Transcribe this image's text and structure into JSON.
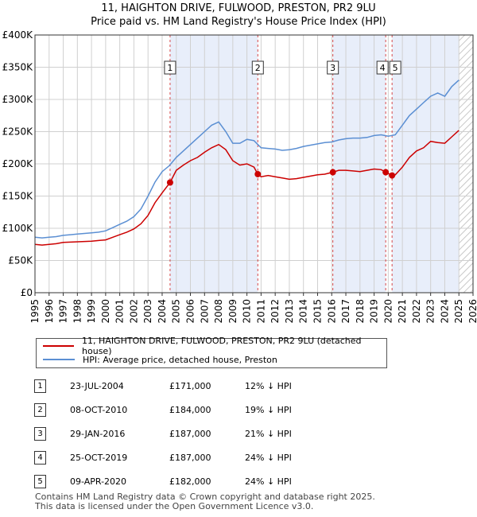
{
  "title_line1": "11, HAIGHTON DRIVE, FULWOOD, PRESTON, PR2 9LU",
  "title_line2": "Price paid vs. HM Land Registry's House Price Index (HPI)",
  "colors": {
    "price_paid": "#cc0000",
    "hpi": "#5b8fd3",
    "shade": "#e8eefa",
    "grid": "#d0d0d0"
  },
  "chart_data": {
    "type": "line",
    "xlim": [
      1995,
      2026
    ],
    "ylim": [
      0,
      400000
    ],
    "y_ticks": [
      {
        "value": 0,
        "label": "£0"
      },
      {
        "value": 50000,
        "label": "£50K"
      },
      {
        "value": 100000,
        "label": "£100K"
      },
      {
        "value": 150000,
        "label": "£150K"
      },
      {
        "value": 200000,
        "label": "£200K"
      },
      {
        "value": 250000,
        "label": "£250K"
      },
      {
        "value": 300000,
        "label": "£300K"
      },
      {
        "value": 350000,
        "label": "£350K"
      },
      {
        "value": 400000,
        "label": "£400K"
      }
    ],
    "x_ticks": [
      "1995",
      "1996",
      "1997",
      "1998",
      "1999",
      "2000",
      "2001",
      "2002",
      "2003",
      "2004",
      "2005",
      "2006",
      "2007",
      "2008",
      "2009",
      "2010",
      "2011",
      "2012",
      "2013",
      "2014",
      "2015",
      "2016",
      "2017",
      "2018",
      "2019",
      "2020",
      "2021",
      "2022",
      "2023",
      "2024",
      "2025",
      "2026"
    ],
    "forecast_from": 2025.0,
    "series": [
      {
        "name": "11, HAIGHTON DRIVE, FULWOOD, PRESTON, PR2 9LU (detached house)",
        "x": [
          1995.0,
          1995.5,
          1996.0,
          1996.5,
          1997.0,
          1997.5,
          1998.0,
          1998.5,
          1999.0,
          1999.5,
          2000.0,
          2000.5,
          2001.0,
          2001.5,
          2002.0,
          2002.5,
          2003.0,
          2003.5,
          2004.0,
          2004.56,
          2005.0,
          2005.5,
          2006.0,
          2006.5,
          2007.0,
          2007.5,
          2008.0,
          2008.5,
          2009.0,
          2009.5,
          2010.0,
          2010.5,
          2010.77,
          2011.0,
          2011.5,
          2012.0,
          2012.5,
          2013.0,
          2013.5,
          2014.0,
          2014.5,
          2015.0,
          2015.5,
          2016.08,
          2016.5,
          2017.0,
          2017.5,
          2018.0,
          2018.5,
          2019.0,
          2019.5,
          2019.82,
          2020.27,
          2020.5,
          2021.0,
          2021.5,
          2022.0,
          2022.5,
          2023.0,
          2023.5,
          2024.0,
          2024.5,
          2025.0
        ],
        "y": [
          75000,
          74000,
          75000,
          76000,
          78000,
          78500,
          79000,
          79500,
          80000,
          81000,
          82000,
          86000,
          90000,
          94000,
          99000,
          107000,
          120000,
          140000,
          155000,
          171000,
          190000,
          198000,
          205000,
          210000,
          218000,
          225000,
          230000,
          222000,
          205000,
          198000,
          200000,
          195000,
          184000,
          180000,
          182000,
          180000,
          178000,
          176000,
          177000,
          179000,
          181000,
          183000,
          184000,
          187000,
          190000,
          190000,
          189000,
          188000,
          190000,
          192000,
          191000,
          187000,
          182000,
          183000,
          195000,
          210000,
          220000,
          225000,
          235000,
          233000,
          232000,
          242000,
          252000
        ]
      },
      {
        "name": "HPI: Average price, detached house, Preston",
        "x": [
          1995.0,
          1995.5,
          1996.0,
          1996.5,
          1997.0,
          1997.5,
          1998.0,
          1998.5,
          1999.0,
          1999.5,
          2000.0,
          2000.5,
          2001.0,
          2001.5,
          2002.0,
          2002.5,
          2003.0,
          2003.5,
          2004.0,
          2004.5,
          2005.0,
          2005.5,
          2006.0,
          2006.5,
          2007.0,
          2007.5,
          2008.0,
          2008.5,
          2009.0,
          2009.5,
          2010.0,
          2010.5,
          2011.0,
          2011.5,
          2012.0,
          2012.5,
          2013.0,
          2013.5,
          2014.0,
          2014.5,
          2015.0,
          2015.5,
          2016.0,
          2016.5,
          2017.0,
          2017.5,
          2018.0,
          2018.5,
          2019.0,
          2019.5,
          2020.0,
          2020.5,
          2021.0,
          2021.5,
          2022.0,
          2022.5,
          2023.0,
          2023.5,
          2024.0,
          2024.5,
          2025.0
        ],
        "y": [
          86000,
          85000,
          86000,
          87000,
          89000,
          90000,
          91000,
          92000,
          93000,
          94000,
          96000,
          101000,
          106000,
          111000,
          118000,
          130000,
          150000,
          172000,
          188000,
          197000,
          210000,
          220000,
          230000,
          240000,
          250000,
          260000,
          265000,
          250000,
          232000,
          232000,
          238000,
          236000,
          225000,
          224000,
          223000,
          221000,
          222000,
          224000,
          227000,
          229000,
          231000,
          233000,
          234000,
          237000,
          239000,
          240000,
          240000,
          241000,
          244000,
          245000,
          243000,
          245000,
          260000,
          275000,
          285000,
          295000,
          305000,
          310000,
          305000,
          320000,
          330000
        ]
      }
    ],
    "transactions": [
      {
        "label": "1",
        "x": 2004.56,
        "price": 171000
      },
      {
        "label": "2",
        "x": 2010.77,
        "price": 184000
      },
      {
        "label": "3",
        "x": 2016.08,
        "price": 187000
      },
      {
        "label": "4",
        "x": 2019.82,
        "price": 187000
      },
      {
        "label": "5",
        "x": 2020.27,
        "price": 182000
      }
    ]
  },
  "legend": {
    "price_paid_label": "11, HAIGHTON DRIVE, FULWOOD, PRESTON, PR2 9LU (detached house)",
    "hpi_label": "HPI: Average price, detached house, Preston"
  },
  "table": [
    {
      "num": "1",
      "date": "23-JUL-2004",
      "price": "£171,000",
      "delta": "12% ↓ HPI"
    },
    {
      "num": "2",
      "date": "08-OCT-2010",
      "price": "£184,000",
      "delta": "19% ↓ HPI"
    },
    {
      "num": "3",
      "date": "29-JAN-2016",
      "price": "£187,000",
      "delta": "21% ↓ HPI"
    },
    {
      "num": "4",
      "date": "25-OCT-2019",
      "price": "£187,000",
      "delta": "24% ↓ HPI"
    },
    {
      "num": "5",
      "date": "09-APR-2020",
      "price": "£182,000",
      "delta": "24% ↓ HPI"
    }
  ],
  "footer": {
    "line1": "Contains HM Land Registry data © Crown copyright and database right 2025.",
    "line2": "This data is licensed under the Open Government Licence v3.0."
  }
}
